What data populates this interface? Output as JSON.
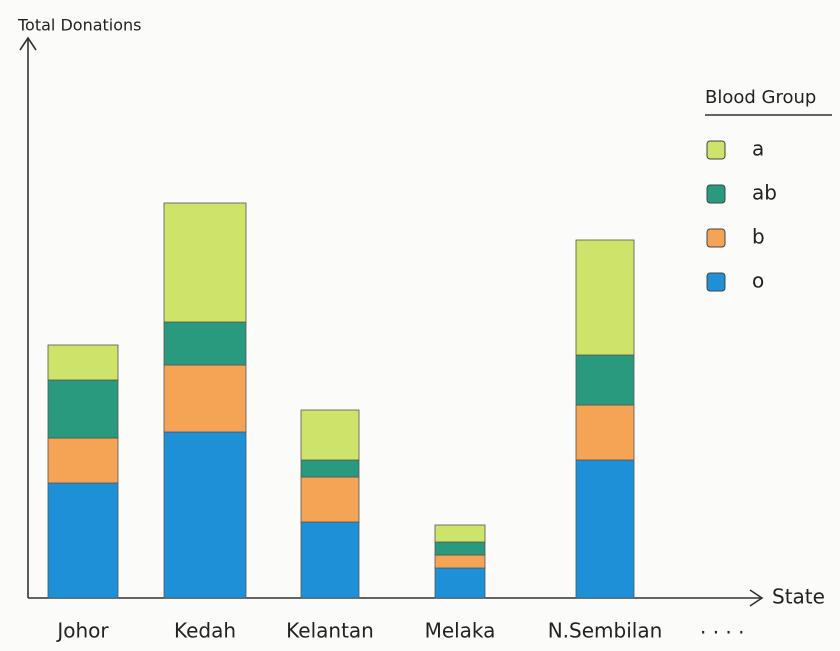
{
  "chart_data": {
    "type": "stacked_bar",
    "y_label": "Total Donations",
    "x_label": "State",
    "categories": [
      "Johor",
      "Kedah",
      "Kelantan",
      "Melaka",
      "N.Sembilan"
    ],
    "x_more": "· · · ·",
    "legend_title": "Blood Group",
    "series": [
      {
        "name": "o",
        "color": "#1e90d8",
        "values": [
          115,
          166,
          76,
          30,
          138
        ]
      },
      {
        "name": "b",
        "color": "#f5a455",
        "values": [
          45,
          67,
          45,
          13,
          55
        ]
      },
      {
        "name": "ab",
        "color": "#2a9a7f",
        "values": [
          58,
          43,
          17,
          13,
          50
        ]
      },
      {
        "name": "a",
        "color": "#cde36a",
        "values": [
          35,
          119,
          50,
          17,
          115
        ]
      }
    ],
    "ylim": [
      0,
      560
    ]
  }
}
